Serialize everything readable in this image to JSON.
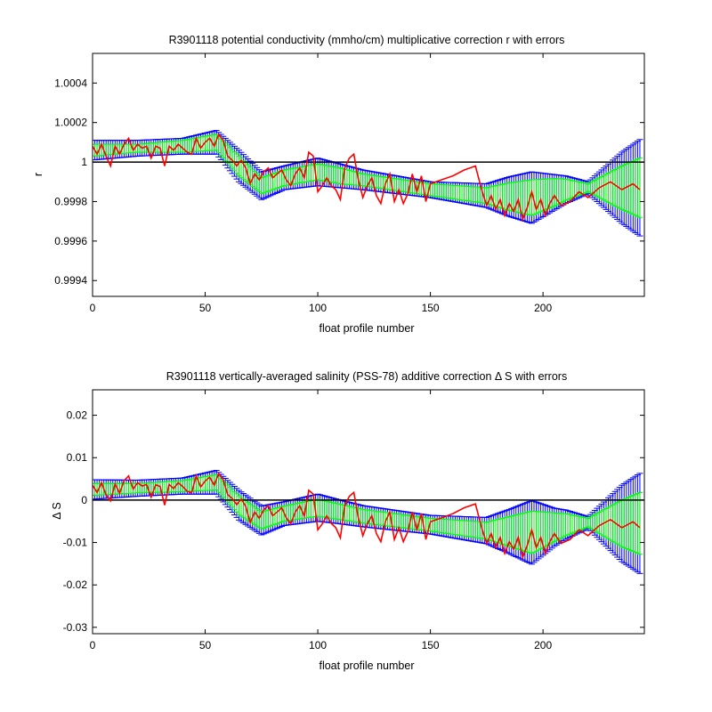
{
  "colors": {
    "background": "#ffffff",
    "axes": "#000000",
    "outer_error": "#0000ff",
    "inner_error": "#00ff00",
    "fit_line": "#ff0000",
    "reference_line": "#000000"
  },
  "chart_data": [
    {
      "type": "line",
      "title": "R3901118 potential conductivity (mmho/cm) multiplicative correction r with errors",
      "xlabel": "float profile number",
      "ylabel": "r",
      "xlim": [
        0,
        245
      ],
      "ylim": [
        0.99932,
        1.00055
      ],
      "xticks": [
        0,
        50,
        100,
        150,
        200
      ],
      "xtick_labels": [
        "0",
        "50",
        "100",
        "150",
        "200"
      ],
      "yticks": [
        0.9994,
        0.9996,
        0.9998,
        1.0,
        1.0002,
        1.0004
      ],
      "ytick_labels": [
        "0.9994",
        "0.9996",
        "0.9998",
        "1",
        "1.0002",
        "1.0004"
      ],
      "grid": false,
      "reference_value": 1.0,
      "center_series": {
        "x": [
          0,
          20,
          40,
          55,
          65,
          75,
          85,
          100,
          120,
          150,
          175,
          195,
          210,
          220,
          235,
          245
        ],
        "y": [
          1.00006,
          1.00007,
          1.00008,
          1.0001,
          0.99998,
          0.99988,
          0.99992,
          0.99995,
          0.99991,
          0.99986,
          0.99983,
          0.99982,
          0.99986,
          0.99987,
          0.99987,
          0.99987
        ]
      },
      "outer_error_halfwidth": {
        "x": [
          0,
          20,
          40,
          55,
          65,
          75,
          85,
          100,
          110,
          120,
          150,
          175,
          185,
          195,
          205,
          220,
          235,
          245
        ],
        "y": [
          5e-05,
          4e-05,
          4e-05,
          6e-05,
          8e-05,
          7e-05,
          6e-05,
          7e-05,
          6e-05,
          5e-05,
          4e-05,
          6e-05,
          0.0001,
          0.00013,
          9e-05,
          3e-05,
          0.00018,
          0.00026
        ]
      },
      "inner_error_halfwidth": {
        "x": [
          0,
          20,
          40,
          55,
          65,
          75,
          85,
          100,
          110,
          120,
          150,
          175,
          185,
          195,
          205,
          220,
          235,
          245
        ],
        "y": [
          3e-05,
          2e-05,
          3e-05,
          4e-05,
          5e-05,
          4e-05,
          4e-05,
          4e-05,
          4e-05,
          3e-05,
          3e-05,
          4e-05,
          7e-05,
          9e-05,
          7e-05,
          2e-05,
          0.00011,
          0.00016
        ]
      },
      "fit_series": {
        "x": [
          0,
          2,
          4,
          6,
          8,
          10,
          12,
          14,
          16,
          18,
          20,
          22,
          24,
          26,
          28,
          30,
          32,
          34,
          36,
          38,
          40,
          42,
          44,
          46,
          48,
          50,
          52,
          54,
          56,
          58,
          60,
          62,
          64,
          66,
          68,
          70,
          72,
          74,
          76,
          78,
          80,
          82,
          84,
          86,
          88,
          90,
          92,
          94,
          96,
          98,
          100,
          102,
          104,
          106,
          108,
          110,
          112,
          114,
          116,
          118,
          120,
          122,
          124,
          126,
          128,
          130,
          132,
          134,
          136,
          138,
          140,
          142,
          144,
          146,
          148,
          150,
          155,
          160,
          165,
          170,
          173,
          175,
          177,
          179,
          181,
          183,
          185,
          187,
          189,
          191,
          193,
          195,
          197,
          199,
          201,
          203,
          205,
          208,
          212,
          216,
          220,
          225,
          230,
          235,
          240,
          243
        ],
        "y": [
          1.00008,
          1.00004,
          1.00009,
          1.00003,
          0.99998,
          1.00008,
          1.00004,
          1.00009,
          1.00012,
          1.00006,
          1.00009,
          1.00007,
          1.00008,
          1.00002,
          1.00008,
          1.00007,
          0.99998,
          1.00008,
          1.00006,
          1.00009,
          1.00007,
          1.00005,
          1.00004,
          1.00012,
          1.00007,
          1.0001,
          1.00012,
          1.00008,
          1.00014,
          1.00011,
          1.00003,
          1.00001,
          0.99998,
          1.00001,
          0.99997,
          0.99989,
          0.99994,
          0.99991,
          0.99995,
          0.99997,
          0.99992,
          0.99994,
          0.99996,
          0.99991,
          0.99988,
          0.99994,
          0.99997,
          0.99992,
          1.00005,
          1.00003,
          0.99985,
          0.99988,
          0.99992,
          0.99988,
          0.99986,
          0.99981,
          0.99997,
          1.00002,
          1.00004,
          0.99991,
          0.99982,
          0.99988,
          0.99992,
          0.99983,
          0.99979,
          0.99989,
          0.99994,
          0.9998,
          0.99986,
          0.99979,
          0.99984,
          0.99994,
          0.99985,
          0.99993,
          0.9998,
          0.99989,
          0.99991,
          0.99993,
          0.99996,
          0.99998,
          0.99985,
          0.99978,
          0.99983,
          0.99976,
          0.99981,
          0.99973,
          0.99979,
          0.99975,
          0.99981,
          0.99971,
          0.99977,
          0.99985,
          0.99976,
          0.99981,
          0.99973,
          0.99979,
          0.99983,
          0.99978,
          0.9998,
          0.99985,
          0.99982,
          0.99987,
          0.9999,
          0.99986,
          0.99989,
          0.99986
        ]
      }
    },
    {
      "type": "line",
      "title": "R3901118 vertically-averaged salinity (PSS-78) additive correction Δ S with errors",
      "xlabel": "float profile number",
      "ylabel": "Δ S",
      "xlim": [
        0,
        245
      ],
      "ylim": [
        -0.0315,
        0.026
      ],
      "xticks": [
        0,
        50,
        100,
        150,
        200
      ],
      "xtick_labels": [
        "0",
        "50",
        "100",
        "150",
        "200"
      ],
      "yticks": [
        -0.03,
        -0.02,
        -0.01,
        0,
        0.01,
        0.02
      ],
      "ytick_labels": [
        "-0.03",
        "-0.02",
        "-0.01",
        "0",
        "0.01",
        "0.02"
      ],
      "grid": false,
      "reference_value": 0,
      "center_series": {
        "x": [
          0,
          20,
          40,
          55,
          65,
          75,
          85,
          100,
          120,
          150,
          175,
          195,
          210,
          220,
          235,
          245
        ],
        "y": [
          0.0025,
          0.0028,
          0.0033,
          0.0042,
          -0.0012,
          -0.0048,
          -0.0032,
          -0.0018,
          -0.0038,
          -0.0058,
          -0.0072,
          -0.0076,
          -0.0058,
          -0.0053,
          -0.0055,
          -0.0055
        ]
      },
      "outer_error_halfwidth": {
        "x": [
          0,
          20,
          40,
          55,
          65,
          75,
          85,
          100,
          110,
          120,
          150,
          175,
          185,
          195,
          205,
          220,
          235,
          245
        ],
        "y": [
          0.0023,
          0.0019,
          0.0019,
          0.0028,
          0.0035,
          0.0034,
          0.0028,
          0.0032,
          0.0028,
          0.0025,
          0.0022,
          0.0031,
          0.0052,
          0.0075,
          0.0045,
          0.0014,
          0.009,
          0.0125
        ]
      },
      "inner_error_halfwidth": {
        "x": [
          0,
          20,
          40,
          55,
          65,
          75,
          85,
          100,
          110,
          120,
          150,
          175,
          185,
          195,
          205,
          220,
          235,
          245
        ],
        "y": [
          0.0014,
          0.0011,
          0.0013,
          0.0018,
          0.0022,
          0.002,
          0.0018,
          0.002,
          0.0018,
          0.0016,
          0.0015,
          0.002,
          0.0035,
          0.005,
          0.0034,
          0.001,
          0.0055,
          0.0077
        ]
      },
      "fit_series": {
        "x": [
          0,
          2,
          4,
          6,
          8,
          10,
          12,
          14,
          16,
          18,
          20,
          22,
          24,
          26,
          28,
          30,
          32,
          34,
          36,
          38,
          40,
          42,
          44,
          46,
          48,
          50,
          52,
          54,
          56,
          58,
          60,
          62,
          64,
          66,
          68,
          70,
          72,
          74,
          76,
          78,
          80,
          82,
          84,
          86,
          88,
          90,
          92,
          94,
          96,
          98,
          100,
          102,
          104,
          106,
          108,
          110,
          112,
          114,
          116,
          118,
          120,
          122,
          124,
          126,
          128,
          130,
          132,
          134,
          136,
          138,
          140,
          142,
          144,
          146,
          148,
          150,
          155,
          160,
          165,
          170,
          173,
          175,
          177,
          179,
          181,
          183,
          185,
          187,
          189,
          191,
          193,
          195,
          197,
          199,
          201,
          203,
          205,
          208,
          212,
          216,
          220,
          225,
          230,
          235,
          240,
          243
        ],
        "y": [
          0.0035,
          0.0018,
          0.0041,
          0.0012,
          -0.0002,
          0.0038,
          0.0016,
          0.0046,
          0.0057,
          0.0026,
          0.0041,
          0.0033,
          0.0037,
          0.0007,
          0.0036,
          0.0032,
          -0.0012,
          0.0037,
          0.0027,
          0.0041,
          0.0032,
          0.0021,
          0.0017,
          0.0057,
          0.0031,
          0.0045,
          0.0054,
          0.0035,
          0.0063,
          0.0048,
          0.0013,
          0.0004,
          -0.0011,
          0.0003,
          -0.0015,
          -0.0053,
          -0.0028,
          -0.0043,
          -0.0023,
          -0.0013,
          -0.0037,
          -0.0028,
          -0.0018,
          -0.0042,
          -0.0056,
          -0.0028,
          -0.0013,
          -0.0038,
          0.0023,
          0.0014,
          -0.007,
          -0.0056,
          -0.0037,
          -0.0055,
          -0.0065,
          -0.0089,
          -0.0013,
          0.0009,
          0.0018,
          -0.0042,
          -0.0084,
          -0.0056,
          -0.0037,
          -0.0079,
          -0.0098,
          -0.0051,
          -0.0028,
          -0.0093,
          -0.0065,
          -0.0098,
          -0.0074,
          -0.0028,
          -0.007,
          -0.0032,
          -0.0093,
          -0.0051,
          -0.0042,
          -0.0032,
          -0.0018,
          -0.0009,
          -0.007,
          -0.0102,
          -0.0079,
          -0.0112,
          -0.0088,
          -0.0126,
          -0.0098,
          -0.0116,
          -0.0088,
          -0.0135,
          -0.0107,
          -0.007,
          -0.0112,
          -0.0088,
          -0.0126,
          -0.0098,
          -0.0079,
          -0.0102,
          -0.0093,
          -0.007,
          -0.0084,
          -0.006,
          -0.0046,
          -0.0065,
          -0.0051,
          -0.0065
        ]
      }
    }
  ]
}
